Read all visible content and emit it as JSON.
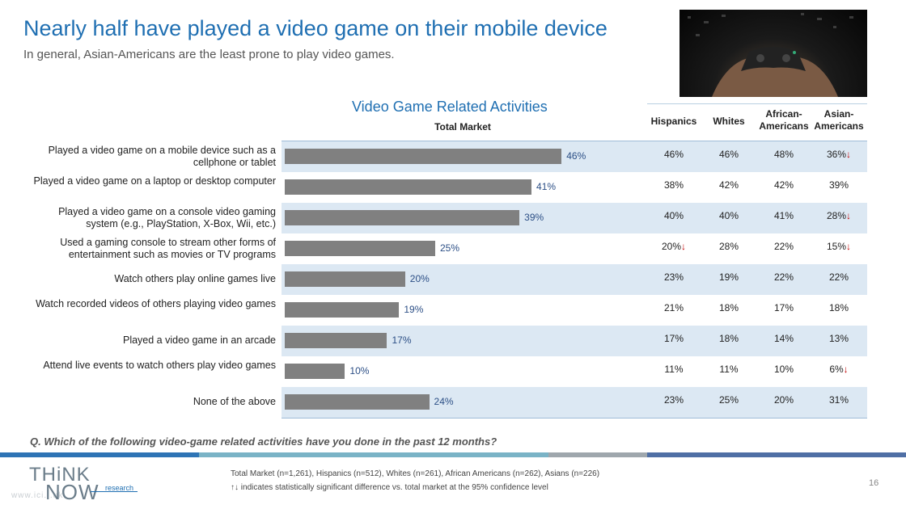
{
  "slide": {
    "title": "Nearly half have played a video game on their mobile device",
    "subtitle": "In general, Asian-Americans are the least prone to play video games.",
    "question": "Q. Which of the following video-game related activities have you done in the past 12 months?",
    "page_number": "16"
  },
  "chart_data": {
    "type": "bar",
    "orientation": "horizontal",
    "title": "Video Game Related Activities",
    "series_label": "Total Market",
    "categories": [
      "Played a video game on a mobile device such as a cellphone or tablet",
      "Played a video game on a laptop or desktop computer",
      "Played a video game on a console video gaming system (e.g., PlayStation, X-Box, Wii, etc.)",
      "Used a gaming console to stream other forms of entertainment such as movies or TV programs",
      "Watch others play online games live",
      "Watch recorded videos of others playing video games",
      "Played a video game in an arcade",
      "Attend live events to watch others play video games",
      "None of the above"
    ],
    "values": [
      46,
      41,
      39,
      25,
      20,
      19,
      17,
      10,
      24
    ],
    "value_labels": [
      "46%",
      "41%",
      "39%",
      "25%",
      "20%",
      "19%",
      "17%",
      "10%",
      "24%"
    ],
    "xlim": [
      0,
      100
    ],
    "bar_color": "#808080",
    "label_color": "#2c4f86"
  },
  "table": {
    "columns": [
      "Hispanics",
      "Whites",
      "African-Americans",
      "Asian-Americans"
    ],
    "column_display": [
      [
        "Hispanics"
      ],
      [
        "Whites"
      ],
      [
        "African-",
        "Americans"
      ],
      [
        "Asian-",
        "Americans"
      ]
    ],
    "rows": [
      [
        "46%",
        "46%",
        "48%",
        "36%"
      ],
      [
        "38%",
        "42%",
        "42%",
        "39%"
      ],
      [
        "40%",
        "40%",
        "41%",
        "28%"
      ],
      [
        "20%",
        "28%",
        "22%",
        "15%"
      ],
      [
        "23%",
        "19%",
        "22%",
        "22%"
      ],
      [
        "21%",
        "18%",
        "17%",
        "18%"
      ],
      [
        "17%",
        "18%",
        "14%",
        "13%"
      ],
      [
        "11%",
        "11%",
        "10%",
        "6%"
      ],
      [
        "23%",
        "25%",
        "20%",
        "31%"
      ]
    ],
    "significant_lower": [
      [
        0,
        3
      ],
      [
        2,
        3
      ],
      [
        3,
        0
      ],
      [
        3,
        3
      ],
      [
        7,
        3
      ]
    ],
    "arrow_down_icon": "arrow-down-icon",
    "arrow_color": "#c00000"
  },
  "footer": {
    "logo_think": "THiNK",
    "logo_now": "NOW",
    "logo_research": "research",
    "logo_url": "www.ici...uk",
    "sample_note": "Total Market (n=1,261), Hispanics (n=512), Whites (n=261), African Americans (n=262), Asians (n=226)",
    "sig_note": "indicates statistically significant difference vs. total market at the 95% confidence level",
    "sig_icons": "↑↓"
  },
  "colors": {
    "title": "#1f6fb2",
    "band": "#dce8f3",
    "rule_segments": [
      "#2e74b5",
      "#7ab3c6",
      "#9fa7ad",
      "#4f6fa5"
    ]
  }
}
